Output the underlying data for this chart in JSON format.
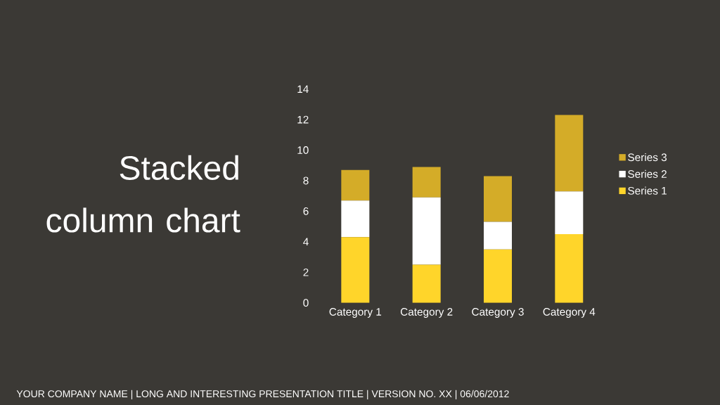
{
  "chart_data": {
    "type": "bar",
    "stacked": true,
    "title": "Stacked column chart",
    "categories": [
      "Category 1",
      "Category 2",
      "Category 3",
      "Category 4"
    ],
    "series": [
      {
        "name": "Series 1",
        "color": "#ffd52a",
        "values": [
          4.3,
          2.5,
          3.5,
          4.5
        ]
      },
      {
        "name": "Series 2",
        "color": "#ffffff",
        "values": [
          2.4,
          4.4,
          1.8,
          2.8
        ]
      },
      {
        "name": "Series 3",
        "color": "#d4ac28",
        "values": [
          2,
          2,
          3,
          5
        ]
      }
    ],
    "ylim": [
      0,
      14
    ],
    "yticks": [
      0,
      2,
      4,
      6,
      8,
      10,
      12,
      14
    ],
    "grid": false,
    "legend": "right",
    "annotations": [
      "YOUR COMPANY NAME  |  LONG AND INTERESTING PRESENTATION TITLE  |  VERSION NO. XX  |  06/06/2012"
    ]
  }
}
